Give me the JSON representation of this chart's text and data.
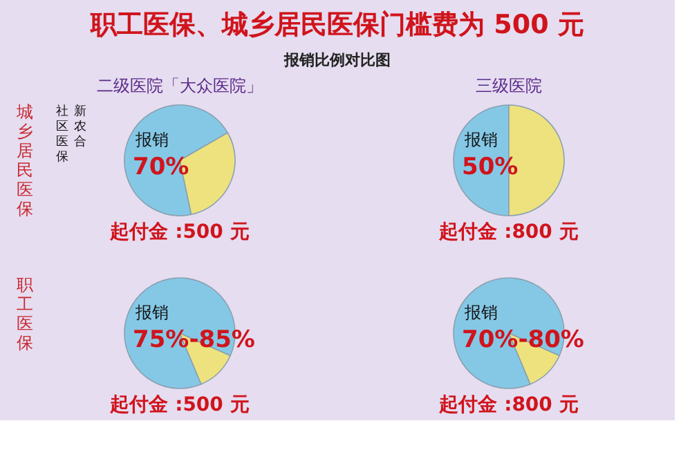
{
  "chart_data": [
    {
      "type": "other",
      "title": "职工医保、城乡居民医保门槛费为 500 元",
      "subtitle": "报销比例对比图"
    },
    {
      "type": "pie",
      "title": "二级医院「大众医院」",
      "ylabel": "城乡居民医保",
      "categories": [
        "报销",
        null
      ],
      "values": [
        70,
        30
      ],
      "value_labels": [
        "70%",
        null
      ],
      "colors": [
        "#85c8e6",
        "#ede27e"
      ],
      "annotations": [
        "起付金 :500 元",
        "社区医保",
        "新农合"
      ]
    },
    {
      "type": "pie",
      "title": "三级医院",
      "categories": [
        "报销",
        null
      ],
      "values": [
        50,
        50
      ],
      "value_labels": [
        "50%",
        null
      ],
      "colors": [
        "#85c8e6",
        "#ede27e"
      ],
      "annotations": [
        "起付金 :800 元"
      ]
    },
    {
      "type": "pie",
      "ylabel": "职工医保",
      "categories": [
        "报销",
        null
      ],
      "values": [
        88,
        12
      ],
      "colors": [
        "#85c8e6",
        "#ede27e"
      ],
      "annotations": [
        "起付金 :500 元",
        {
          "text": "75%-85%"
        }
      ]
    },
    {
      "type": "pie",
      "categories": [
        "报销",
        null
      ],
      "values": [
        88,
        12
      ],
      "colors": [
        "#85c8e6",
        "#ede27e"
      ],
      "annotations": [
        "起付金 :800 元",
        {
          "text": "70%-80%"
        }
      ]
    }
  ]
}
